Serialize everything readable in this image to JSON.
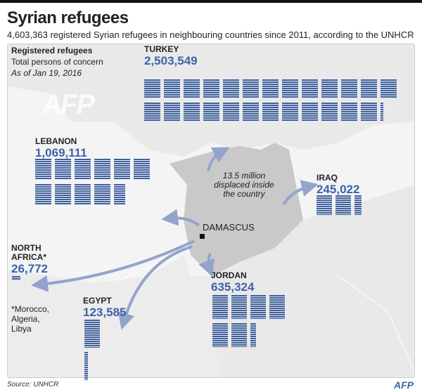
{
  "title": "Syrian refugees",
  "subtitle": "4,603,363 registered Syrian refugees in neighbouring countries since 2011, according to the UNHCR",
  "legend": {
    "heading": "Registered refugees",
    "line": "Total persons of concern",
    "date": "As of Jan 19, 2016"
  },
  "internal": {
    "text": "13.5 million displaced inside the country"
  },
  "capital": "DAMASCUS",
  "countries": [
    {
      "id": "turkey",
      "name": "TURKEY",
      "value_label": "2,503,549",
      "value": 2503549
    },
    {
      "id": "lebanon",
      "name": "LEBANON",
      "value_label": "1,069,111",
      "value": 1069111
    },
    {
      "id": "iraq",
      "name": "IRAQ",
      "value_label": "245,022",
      "value": 245022
    },
    {
      "id": "jordan",
      "name": "JORDAN",
      "value_label": "635,324",
      "value": 635324
    },
    {
      "id": "egypt",
      "name": "EGYPT",
      "value_label": "123,585",
      "value": 123585
    },
    {
      "id": "north-africa",
      "name": "NORTH AFRICA*",
      "value_label": "26,772",
      "value": 26772
    }
  ],
  "footnote": "*Morocco, Algeria, Libya",
  "source": "Source: UNHCR",
  "logo": "AFP",
  "watermark": "AFP",
  "colors": {
    "accent": "#3d63a8",
    "icons": "#3d5f9e",
    "syria": "#c9c9c9",
    "arrows": "#93a3cc"
  }
}
